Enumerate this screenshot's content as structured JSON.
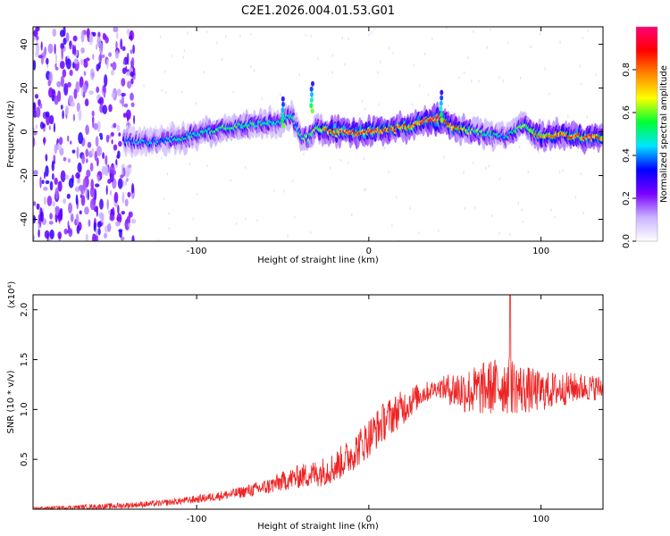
{
  "figure_title": "C2E1.2026.004.01.53.G01",
  "chart_data": [
    {
      "type": "heatmap",
      "name": "spectrogram",
      "xlabel": "Height of straight line (km)",
      "ylabel": "Frequency (Hz)",
      "xlim": [
        -195,
        136
      ],
      "ylim": [
        -50,
        48
      ],
      "x_ticks": [
        -100,
        0,
        100
      ],
      "y_ticks": [
        -40,
        -20,
        0,
        20,
        40
      ],
      "x_tick_labels": [
        "-100",
        "0",
        "100"
      ],
      "y_tick_labels": [
        "-40",
        "-20",
        "0",
        "20",
        "40"
      ],
      "noise_region_x": [
        -195,
        -140
      ],
      "ridge": {
        "x": [
          -142,
          -130,
          -120,
          -110,
          -100,
          -90,
          -80,
          -70,
          -60,
          -50,
          -45,
          -40,
          -35,
          -30,
          -25,
          -20,
          -10,
          0,
          10,
          20,
          30,
          35,
          40,
          45,
          50,
          60,
          70,
          80,
          90,
          100,
          110,
          120,
          136
        ],
        "freq": [
          -4,
          -5,
          -4,
          -3,
          -1,
          1,
          2,
          3,
          4,
          5,
          8,
          -2,
          -3,
          2,
          1,
          0,
          0,
          0,
          1,
          2,
          4,
          5,
          6,
          4,
          2,
          0,
          -1,
          -2,
          3,
          -2,
          -1,
          -2,
          -3
        ],
        "peak_amplitude": [
          0.35,
          0.45,
          0.4,
          0.5,
          0.5,
          0.55,
          0.55,
          0.55,
          0.5,
          0.45,
          0.5,
          0.5,
          0.6,
          0.6,
          0.8,
          0.85,
          0.9,
          0.9,
          0.85,
          0.8,
          0.85,
          0.9,
          0.95,
          0.85,
          0.8,
          0.6,
          0.5,
          0.45,
          0.6,
          0.75,
          0.8,
          0.85,
          0.8
        ]
      },
      "features": [
        {
          "label": "spike",
          "x": 42,
          "freq": 18
        },
        {
          "label": "spike",
          "x": -33,
          "freq": 22
        },
        {
          "label": "spike",
          "x": -50,
          "freq": 15
        }
      ],
      "colorbar": {
        "label": "Normalized spectral amplitude",
        "range": [
          0.0,
          1.0
        ],
        "ticks": [
          0.0,
          0.2,
          0.4,
          0.6,
          0.8
        ],
        "tick_labels": [
          "0.0",
          "0.2",
          "0.4",
          "0.6",
          "0.8"
        ],
        "colors": [
          "#ffffff",
          "#c9b3ff",
          "#7a00ff",
          "#0000ff",
          "#00e5ff",
          "#00ff33",
          "#ffff00",
          "#ff8800",
          "#ff0000",
          "#ff0077"
        ]
      }
    },
    {
      "type": "line",
      "name": "snr",
      "xlabel": "Height of straight line (km)",
      "ylabel": "SNR (10 * v/v)",
      "scale_note": "(x10⁴)",
      "xlim": [
        -195,
        136
      ],
      "ylim": [
        0.0,
        2.15
      ],
      "x_ticks": [
        -100,
        0,
        100
      ],
      "y_ticks": [
        0.5,
        1.0,
        1.5,
        2.0
      ],
      "x_tick_labels": [
        "-100",
        "0",
        "100"
      ],
      "y_tick_labels": [
        "0.5",
        "1.0",
        "1.5",
        "2.0"
      ],
      "color": "#ee2222",
      "envelope": {
        "x": [
          -195,
          -170,
          -150,
          -120,
          -100,
          -80,
          -60,
          -50,
          -40,
          -30,
          -20,
          -10,
          0,
          10,
          20,
          30,
          40,
          50,
          60,
          70,
          80,
          90,
          100,
          110,
          120,
          136
        ],
        "mean": [
          0.01,
          0.02,
          0.03,
          0.06,
          0.1,
          0.15,
          0.22,
          0.28,
          0.33,
          0.36,
          0.42,
          0.55,
          0.72,
          0.9,
          1.02,
          1.15,
          1.22,
          1.2,
          1.18,
          1.22,
          1.25,
          1.2,
          1.18,
          1.2,
          1.22,
          1.22
        ],
        "noise": [
          0.01,
          0.02,
          0.03,
          0.03,
          0.04,
          0.05,
          0.08,
          0.1,
          0.12,
          0.14,
          0.16,
          0.18,
          0.2,
          0.2,
          0.18,
          0.12,
          0.08,
          0.2,
          0.25,
          0.28,
          0.3,
          0.25,
          0.2,
          0.18,
          0.15,
          0.12
        ]
      },
      "peak": {
        "x": 82,
        "y": 2.15
      }
    }
  ]
}
